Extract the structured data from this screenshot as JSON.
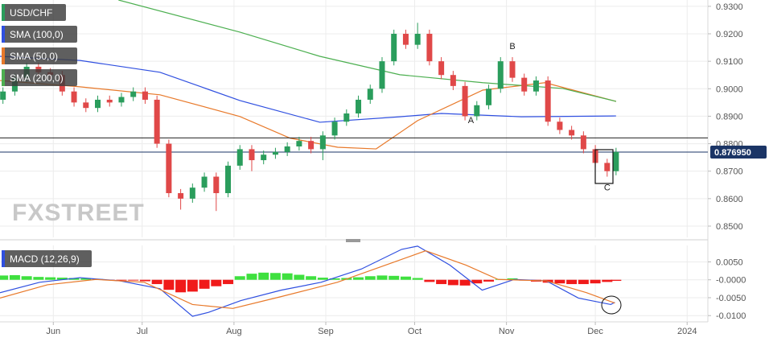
{
  "chart_data": [
    {
      "type": "candlestick",
      "title": "USD/CHF",
      "watermark": "FXSTREET",
      "xlim": [
        13,
        252
      ],
      "ylim": [
        0.8459,
        0.9323
      ],
      "yticks": [
        {
          "value": 0.93,
          "label": "0.9300"
        },
        {
          "value": 0.92,
          "label": "0.9200"
        },
        {
          "value": 0.91,
          "label": "0.9100"
        },
        {
          "value": 0.9,
          "label": "0.9000"
        },
        {
          "value": 0.89,
          "label": "0.8900"
        },
        {
          "value": 0.88,
          "label": "0.8800"
        },
        {
          "value": 0.87,
          "label": "0.8700"
        },
        {
          "value": 0.86,
          "label": "0.8600"
        },
        {
          "value": 0.85,
          "label": "0.8500"
        }
      ],
      "grid": true,
      "up_color": "#2a9d5c",
      "down_color": "#e04848",
      "x": [
        14,
        18,
        22,
        26,
        30,
        34,
        38,
        42,
        46,
        50,
        54,
        58,
        62,
        66,
        70,
        74,
        78,
        82,
        86,
        90,
        94,
        98,
        102,
        106,
        110,
        114,
        118,
        122,
        126,
        130,
        134,
        138,
        142,
        146,
        150,
        154,
        158,
        162,
        166,
        170,
        174,
        178,
        182,
        186,
        190,
        194,
        198,
        202,
        206,
        210,
        214,
        218,
        221
      ],
      "open": [
        0.896,
        0.899,
        0.904,
        0.908,
        0.906,
        0.905,
        0.899,
        0.895,
        0.893,
        0.896,
        0.895,
        0.897,
        0.899,
        0.896,
        0.88,
        0.862,
        0.86,
        0.864,
        0.868,
        0.862,
        0.872,
        0.878,
        0.874,
        0.876,
        0.877,
        0.879,
        0.881,
        0.878,
        0.883,
        0.888,
        0.891,
        0.896,
        0.9,
        0.91,
        0.92,
        0.916,
        0.92,
        0.91,
        0.905,
        0.901,
        0.89,
        0.894,
        0.9,
        0.91,
        0.904,
        0.899,
        0.903,
        0.888,
        0.885,
        0.883,
        0.878,
        0.873,
        0.87
      ],
      "high": [
        0.9005,
        0.9055,
        0.9095,
        0.9095,
        0.9075,
        0.9065,
        0.9005,
        0.8965,
        0.8975,
        0.8975,
        0.8985,
        0.9005,
        0.9005,
        0.8975,
        0.8815,
        0.8635,
        0.8655,
        0.8695,
        0.8695,
        0.8735,
        0.8795,
        0.8795,
        0.8775,
        0.8785,
        0.8805,
        0.8825,
        0.8825,
        0.8845,
        0.8895,
        0.8925,
        0.8975,
        0.9015,
        0.9115,
        0.9215,
        0.9215,
        0.924,
        0.9215,
        0.9115,
        0.9065,
        0.9025,
        0.8955,
        0.9015,
        0.9115,
        0.9115,
        0.9055,
        0.9045,
        0.9045,
        0.8895,
        0.8865,
        0.8845,
        0.8795,
        0.8745,
        0.8785
      ],
      "low": [
        0.8945,
        0.8975,
        0.9025,
        0.9045,
        0.9035,
        0.8975,
        0.8935,
        0.8915,
        0.8915,
        0.8935,
        0.8935,
        0.8955,
        0.8945,
        0.8785,
        0.8605,
        0.856,
        0.8585,
        0.8625,
        0.8555,
        0.8605,
        0.8705,
        0.87,
        0.8725,
        0.8745,
        0.8755,
        0.8775,
        0.8765,
        0.874,
        0.8815,
        0.8865,
        0.8895,
        0.8945,
        0.8985,
        0.9085,
        0.9145,
        0.9145,
        0.9085,
        0.9035,
        0.8995,
        0.8885,
        0.8885,
        0.8925,
        0.8985,
        0.9025,
        0.8975,
        0.8975,
        0.8865,
        0.8835,
        0.8815,
        0.8765,
        0.8715,
        0.868,
        0.8685
      ],
      "close": [
        0.899,
        0.904,
        0.908,
        0.906,
        0.905,
        0.899,
        0.895,
        0.893,
        0.896,
        0.895,
        0.897,
        0.899,
        0.896,
        0.88,
        0.862,
        0.86,
        0.864,
        0.868,
        0.862,
        0.872,
        0.878,
        0.874,
        0.876,
        0.877,
        0.879,
        0.881,
        0.878,
        0.883,
        0.888,
        0.891,
        0.896,
        0.9,
        0.91,
        0.92,
        0.916,
        0.92,
        0.91,
        0.905,
        0.901,
        0.89,
        0.894,
        0.9,
        0.91,
        0.904,
        0.899,
        0.903,
        0.888,
        0.885,
        0.883,
        0.878,
        0.873,
        0.87,
        0.877
      ],
      "series": [
        {
          "name": "SMA (100,0)",
          "color": "#2f4fe0",
          "x": [
            13,
            40,
            67,
            94,
            121,
            148,
            162,
            189,
            221
          ],
          "values": [
            0.9118,
            0.9103,
            0.906,
            0.8957,
            0.8878,
            0.8898,
            0.891,
            0.8898,
            0.8901
          ]
        },
        {
          "name": "SMA (50,0)",
          "color": "#e8792a",
          "x": [
            13,
            40,
            67,
            94,
            111,
            127,
            140,
            154,
            176,
            197,
            221
          ],
          "values": [
            0.903,
            0.9007,
            0.8978,
            0.8899,
            0.882,
            0.8787,
            0.8781,
            0.8884,
            0.8995,
            0.9022,
            0.8954
          ]
        },
        {
          "name": "SMA (200,0)",
          "color": "#4caf50",
          "x": [
            53,
            94,
            121,
            148,
            176,
            203,
            221
          ],
          "values": [
            0.9323,
            0.9206,
            0.9118,
            0.9051,
            0.9022,
            0.9001,
            0.8954
          ]
        }
      ],
      "hlines": [
        {
          "value": 0.8821,
          "color": "#222222"
        },
        {
          "value": 0.87695,
          "label": "0.876950",
          "color": "#1b3566"
        }
      ],
      "annotations": [
        {
          "text": "A",
          "x": 172,
          "y": 0.8875
        },
        {
          "text": "B",
          "x": 186,
          "y": 0.9145
        },
        {
          "text": "C",
          "x": 218,
          "y": 0.863
        }
      ]
    },
    {
      "type": "macd",
      "title": "MACD (12,26,9)",
      "xlim": [
        13,
        252
      ],
      "ylim": [
        -0.0113,
        0.0096
      ],
      "yticks": [
        {
          "value": 0.005,
          "label": "0.0050"
        },
        {
          "value": 0,
          "label": "-0.0000"
        },
        {
          "value": -0.005,
          "label": "-0.0050"
        },
        {
          "value": -0.01,
          "label": "-0.0100"
        }
      ],
      "xticks": [
        {
          "value": 31,
          "label": "Jun"
        },
        {
          "value": 61,
          "label": "Jul"
        },
        {
          "value": 92,
          "label": "Aug"
        },
        {
          "value": 123,
          "label": "Sep"
        },
        {
          "value": 153,
          "label": "Oct"
        },
        {
          "value": 184,
          "label": "Nov"
        },
        {
          "value": 214,
          "label": "Dec"
        },
        {
          "value": 245,
          "label": "2024"
        }
      ],
      "grid": true,
      "up_color": "#3ee03e",
      "down_color": "#f01a1a",
      "x": [
        14,
        18,
        22,
        26,
        30,
        34,
        38,
        42,
        46,
        50,
        54,
        58,
        62,
        66,
        70,
        74,
        78,
        82,
        86,
        90,
        94,
        98,
        102,
        106,
        110,
        114,
        118,
        122,
        126,
        130,
        134,
        138,
        142,
        146,
        150,
        154,
        158,
        162,
        166,
        170,
        174,
        178,
        182,
        186,
        190,
        194,
        198,
        202,
        206,
        210,
        214,
        218,
        221
      ],
      "histogram": [
        0.0012,
        0.0013,
        0.001,
        0.0008,
        0.0007,
        0.0006,
        0.0005,
        0.0004,
        0.0002,
        -0.0001,
        -0.0002,
        -0.0002,
        -0.0004,
        -0.0012,
        -0.0028,
        -0.0035,
        -0.0033,
        -0.0025,
        -0.0018,
        -0.0012,
        0.001,
        0.0017,
        0.002,
        0.0019,
        0.0018,
        0.0014,
        0.001,
        0.0006,
        0.0004,
        0.0005,
        0.0007,
        0.001,
        0.0012,
        0.0011,
        0.0009,
        0.0005,
        -0.0006,
        -0.0012,
        -0.0015,
        -0.0016,
        -0.001,
        -0.0005,
        0.0002,
        0.0004,
        -0.0002,
        -0.0005,
        -0.0008,
        -0.001,
        -0.0012,
        -0.0012,
        -0.001,
        -0.0006,
        -0.0003
      ],
      "series": [
        {
          "color": "#2f4fe0",
          "x": [
            13,
            26.4,
            40,
            53.5,
            67,
            78,
            83.4,
            94.3,
            107.9,
            121.4,
            135,
            148.6,
            154,
            164.9,
            175.8,
            186.6,
            197.5,
            208.3,
            219.2,
            220.6
          ],
          "values": [
            -0.0036,
            -0.0007,
            0.0006,
            -0.0003,
            -0.0025,
            -0.0102,
            -0.0091,
            -0.0058,
            -0.0029,
            -0.0007,
            0.003,
            0.0085,
            0.0094,
            0.0041,
            -0.0029,
            0.0001,
            -0.0003,
            -0.0051,
            -0.0069,
            -0.0063
          ]
        },
        {
          "color": "#e8792a",
          "x": [
            13,
            29,
            45.4,
            61.7,
            78,
            91.6,
            107.9,
            126.9,
            143.2,
            156.7,
            170.3,
            181.2,
            197.5,
            211,
            220.6
          ],
          "values": [
            -0.0051,
            -0.0014,
            0.0001,
            -0.0007,
            -0.0069,
            -0.008,
            -0.0047,
            -0.0007,
            0.0041,
            0.0081,
            0.0041,
            0.0001,
            -0.0003,
            -0.0036,
            -0.0065
          ]
        }
      ]
    }
  ]
}
